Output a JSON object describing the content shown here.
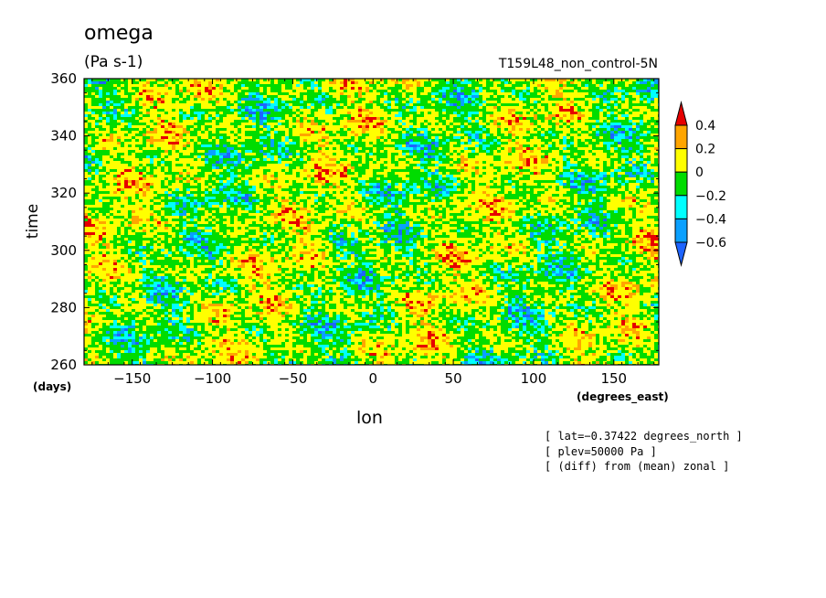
{
  "chart_data": {
    "type": "heatmap",
    "title": "omega",
    "units": "(Pa s-1)",
    "run_label": "T159L48_non_control-5N",
    "xlabel": "lon",
    "xunit": "(degrees_east)",
    "ylabel": "time",
    "yunit": "(days)",
    "xlim": [
      -180,
      178
    ],
    "ylim": [
      260,
      360
    ],
    "x_ticks": [
      -150,
      -100,
      -50,
      0,
      50,
      100,
      150
    ],
    "x_tick_labels": [
      "−150",
      "−100",
      "−50",
      "0",
      "50",
      "100",
      "150"
    ],
    "y_ticks": [
      260,
      280,
      300,
      320,
      340,
      360
    ],
    "y_tick_labels": [
      "260",
      "280",
      "300",
      "320",
      "340",
      "360"
    ],
    "colorbar": {
      "levels": [
        -0.6,
        -0.4,
        -0.2,
        0,
        0.2,
        0.4
      ],
      "labels": [
        "−0.6",
        "−0.4",
        "−0.2",
        "0",
        "0.2",
        "0.4"
      ],
      "colors": [
        "#1e64ff",
        "#0aa0ff",
        "#00ffff",
        "#00dc00",
        "#ffff00",
        "#ffa500",
        "#e60000"
      ]
    },
    "notes": [
      "[ lat=−0.37422 degrees_north ]",
      "[ plev=50000 Pa ]",
      "[ (diff) from (mean) zonal ]"
    ]
  }
}
